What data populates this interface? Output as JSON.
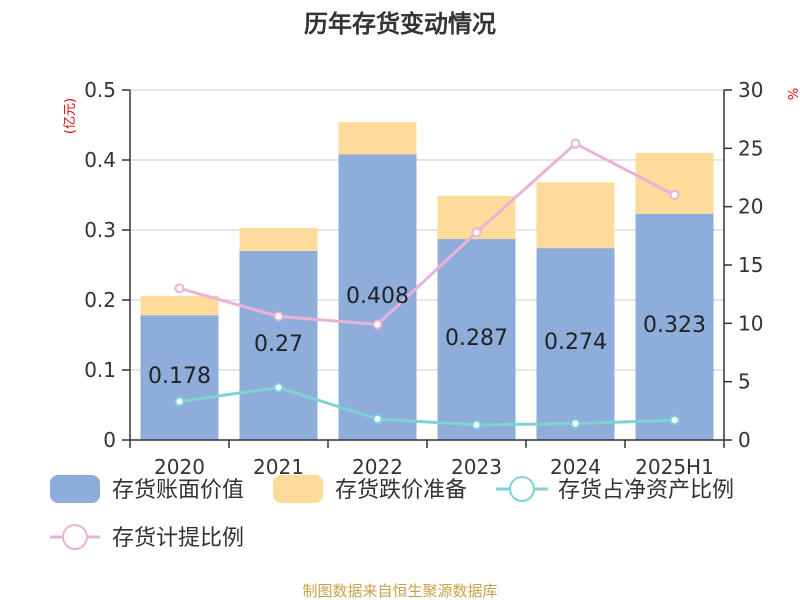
{
  "title": "历年存货变动情况",
  "source": "制图数据来自恒生聚源数据库",
  "colors": {
    "book_value": "#8eaddb",
    "impairment": "#fedb9a",
    "ratio_net_assets": "#7dd3d3",
    "provision_ratio": "#e9b3d8",
    "axis": "#333333",
    "grid": "#cccccc",
    "unit": "#e60000",
    "source": "#c8a24a"
  },
  "chart_data": {
    "type": "bar",
    "title": "历年存货变动情况",
    "categories": [
      "2020",
      "2021",
      "2022",
      "2023",
      "2024",
      "2025H1"
    ],
    "left_axis": {
      "unit": "(亿元)",
      "ylim": [
        0,
        0.5
      ],
      "ticks": [
        "0",
        "0.1",
        "0.2",
        "0.3",
        "0.4",
        "0.5"
      ]
    },
    "right_axis": {
      "unit": "%",
      "ylim": [
        0,
        30
      ],
      "ticks": [
        "0",
        "5",
        "10",
        "15",
        "20",
        "25",
        "30"
      ]
    },
    "grid": true,
    "legend_position": "bottom",
    "series": [
      {
        "name": "存货账面价值",
        "kind": "bar",
        "axis": "left",
        "values": [
          0.178,
          0.27,
          0.408,
          0.287,
          0.274,
          0.323
        ],
        "labels": [
          "0.178",
          "0.27",
          "0.408",
          "0.287",
          "0.274",
          "0.323"
        ]
      },
      {
        "name": "存货跌价准备",
        "kind": "bar-stack",
        "axis": "left",
        "values": [
          0.028,
          0.033,
          0.046,
          0.062,
          0.094,
          0.087
        ]
      },
      {
        "name": "存货占净资产比例",
        "kind": "line",
        "axis": "right",
        "values": [
          3.3,
          4.5,
          1.8,
          1.3,
          1.4,
          1.7
        ]
      },
      {
        "name": "存货计提比例",
        "kind": "line",
        "axis": "right",
        "values": [
          13.0,
          10.6,
          9.9,
          17.8,
          25.4,
          21.0
        ]
      }
    ]
  }
}
